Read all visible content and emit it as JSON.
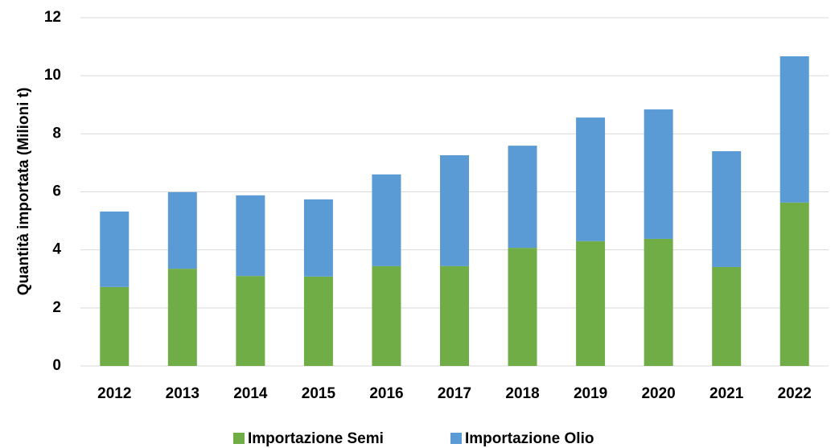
{
  "chart_data": {
    "type": "stacked_bar",
    "y_label": "Quantità importata (Milioni t)",
    "categories": [
      "2012",
      "2013",
      "2014",
      "2015",
      "2016",
      "2017",
      "2018",
      "2019",
      "2020",
      "2021",
      "2022"
    ],
    "series": [
      {
        "name": "Importazione Semi",
        "color": "#70ad47",
        "values": [
          2.72,
          3.35,
          3.1,
          3.08,
          3.44,
          3.44,
          4.07,
          4.3,
          4.38,
          3.41,
          5.63
        ]
      },
      {
        "name": "Importazione Olio",
        "color": "#5b9bd5",
        "values": [
          2.6,
          2.64,
          2.78,
          2.66,
          3.16,
          3.82,
          3.52,
          4.26,
          4.46,
          3.99,
          5.04
        ]
      }
    ],
    "ylim": [
      0,
      12
    ],
    "yticks": [
      0,
      2,
      4,
      6,
      8,
      10,
      12
    ],
    "grid": true,
    "legend": "bottom"
  }
}
